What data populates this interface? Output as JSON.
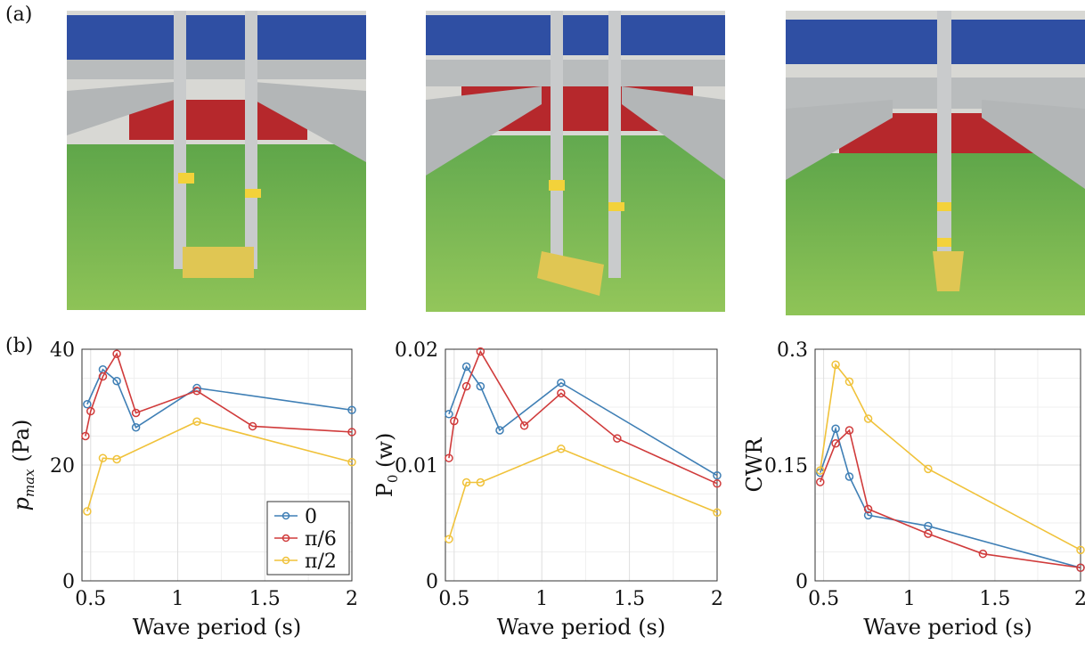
{
  "labels": {
    "a": "(a)",
    "b": "(b)"
  },
  "colors": {
    "s0": "#3f7fb5",
    "s1": "#d03b3b",
    "s2": "#f0c23a"
  },
  "photos": [
    {
      "name": "photo-orientation-0"
    },
    {
      "name": "photo-orientation-pi6"
    },
    {
      "name": "photo-orientation-pi2"
    }
  ],
  "chart_data": [
    {
      "type": "line",
      "xlabel": "Wave period (s)",
      "ylabel": "p_max (Pa)",
      "ylabel_main": "p",
      "ylabel_sub": "max",
      "ylabel_unit": " (Pa)",
      "xlim": [
        0.45,
        2.0
      ],
      "ylim": [
        0,
        40
      ],
      "xticks": [
        0.5,
        1,
        1.5,
        2
      ],
      "xtick_labels": [
        "0.5",
        "1",
        "1.5",
        "2"
      ],
      "yticks": [
        0,
        20,
        40
      ],
      "ytick_labels": [
        "0",
        "20",
        "40"
      ],
      "grid": true,
      "legend_position": "bottom-right",
      "series": [
        {
          "name": "0",
          "x": [
            0.48,
            0.57,
            0.65,
            0.76,
            1.11,
            2.0
          ],
          "y": [
            30.5,
            36.5,
            34.5,
            26.5,
            33.3,
            29.5
          ]
        },
        {
          "name": "π/6",
          "x": [
            0.47,
            0.5,
            0.57,
            0.65,
            0.76,
            1.11,
            1.43,
            2.0
          ],
          "y": [
            25,
            29.3,
            35.3,
            39.2,
            29,
            32.8,
            26.7,
            25.7
          ]
        },
        {
          "name": "π/2",
          "x": [
            0.48,
            0.57,
            0.65,
            1.11,
            2.0
          ],
          "y": [
            12,
            21.2,
            21,
            27.5,
            20.5
          ]
        }
      ]
    },
    {
      "type": "line",
      "xlabel": "Wave period (s)",
      "ylabel": "P_0 (w)",
      "ylabel_main": "P",
      "ylabel_sub": "0",
      "ylabel_unit": " (w)",
      "xlim": [
        0.45,
        2.0
      ],
      "ylim": [
        0,
        0.02
      ],
      "xticks": [
        0.5,
        1,
        1.5,
        2
      ],
      "xtick_labels": [
        "0.5",
        "1",
        "1.5",
        "2"
      ],
      "yticks": [
        0,
        0.01,
        0.02
      ],
      "ytick_labels": [
        "0",
        "0.01",
        "0.02"
      ],
      "grid": true,
      "series": [
        {
          "name": "0",
          "x": [
            0.47,
            0.57,
            0.65,
            0.76,
            1.11,
            2.0
          ],
          "y": [
            0.0144,
            0.0185,
            0.0168,
            0.013,
            0.0171,
            0.0091
          ]
        },
        {
          "name": "π/6",
          "x": [
            0.47,
            0.5,
            0.57,
            0.65,
            0.9,
            1.11,
            1.43,
            2.0
          ],
          "y": [
            0.0106,
            0.0138,
            0.0168,
            0.0198,
            0.0134,
            0.0162,
            0.0123,
            0.0084
          ]
        },
        {
          "name": "π/2",
          "x": [
            0.47,
            0.57,
            0.65,
            1.11,
            2.0
          ],
          "y": [
            0.0036,
            0.0085,
            0.0085,
            0.0114,
            0.0059
          ]
        }
      ]
    },
    {
      "type": "line",
      "xlabel": "Wave period (s)",
      "ylabel": "CWR",
      "xlim": [
        0.45,
        2.0
      ],
      "ylim": [
        0,
        0.3
      ],
      "xticks": [
        0.5,
        1,
        1.5,
        2
      ],
      "xtick_labels": [
        "0.5",
        "1",
        "1.5",
        "2"
      ],
      "yticks": [
        0,
        0.15,
        0.3
      ],
      "ytick_labels": [
        "0",
        "0.15",
        "0.3"
      ],
      "grid": true,
      "series": [
        {
          "name": "0",
          "x": [
            0.48,
            0.57,
            0.65,
            0.76,
            1.11,
            2.0
          ],
          "y": [
            0.14,
            0.197,
            0.135,
            0.085,
            0.071,
            0.017
          ]
        },
        {
          "name": "π/6",
          "x": [
            0.48,
            0.57,
            0.65,
            0.76,
            1.11,
            1.43,
            2.0
          ],
          "y": [
            0.128,
            0.178,
            0.195,
            0.093,
            0.061,
            0.035,
            0.017
          ]
        },
        {
          "name": "π/2",
          "x": [
            0.48,
            0.57,
            0.65,
            0.76,
            1.11,
            2.0
          ],
          "y": [
            0.143,
            0.28,
            0.258,
            0.21,
            0.145,
            0.04
          ]
        }
      ]
    }
  ]
}
